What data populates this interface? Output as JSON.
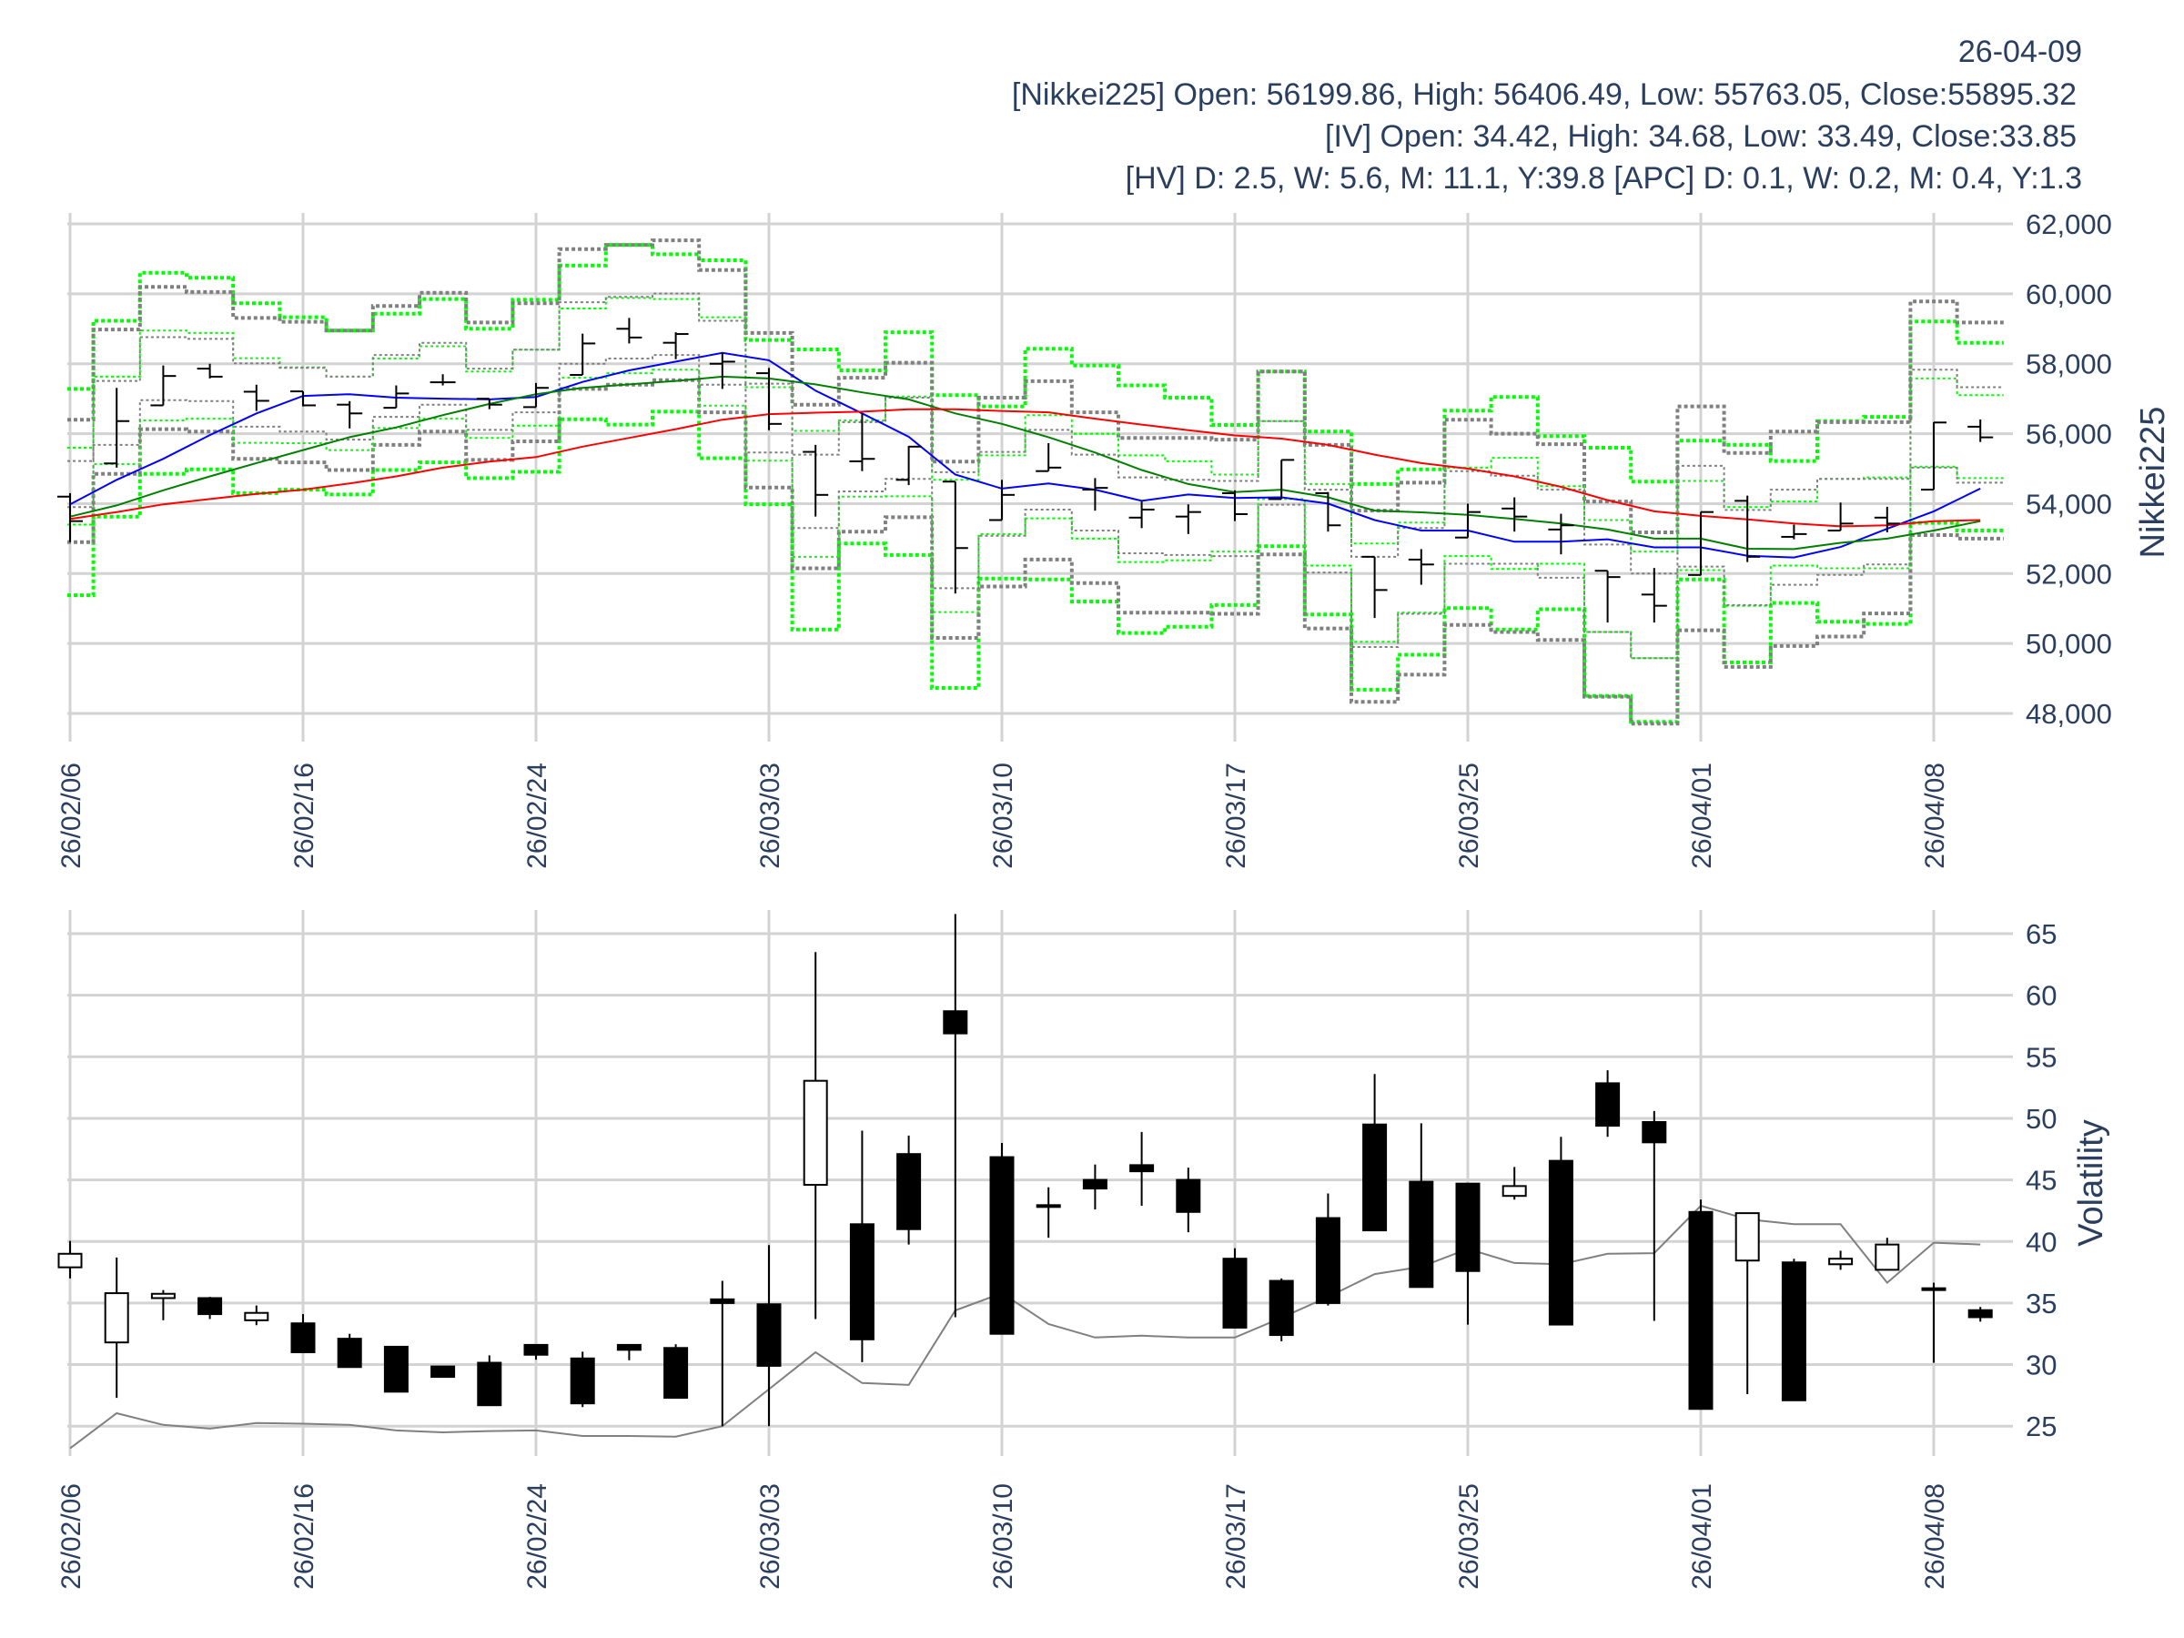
{
  "header": {
    "date": "26-04-09",
    "nikkei_line": "[Nikkei225] Open: 56199.86, High: 56406.49, Low: 55763.05, Close:55895.32",
    "iv_line": "[IV] Open: 34.42, High: 34.68, Low: 33.49, Close:33.85",
    "hv_line": "[HV] D: 2.5, W: 5.6, M: 11.1, Y:39.8 [APC] D: 0.1, W: 0.2, M: 0.4, Y:1.3"
  },
  "colors": {
    "text": "#2a3f5f",
    "grid": "#d3d3d3",
    "ma_short": "#0000ff",
    "ma_mid": "#008000",
    "ma_long": "#ff0000",
    "band_green": "#00ff00",
    "band_gray": "#808080",
    "hv": "#808080"
  },
  "chart_data": [
    {
      "type": "ohlc",
      "ylabel": "Nikkei225",
      "ylim": [
        47500,
        62300
      ],
      "yticks": [
        48000,
        50000,
        52000,
        54000,
        56000,
        58000,
        60000,
        62000
      ],
      "ytick_labels": [
        "48,000",
        "50,000",
        "52,000",
        "54,000",
        "56,000",
        "58,000",
        "60,000",
        "62,000"
      ],
      "xtick_index": [
        0,
        5,
        10,
        15,
        20,
        25,
        30,
        35,
        40
      ],
      "xtick_labels": [
        "26/02/06",
        "26/02/16",
        "26/02/24",
        "26/03/03",
        "26/03/10",
        "26/03/17",
        "26/03/25",
        "26/04/01",
        "26/04/08"
      ],
      "dates": [
        "02/06",
        "02/09",
        "02/10",
        "02/12",
        "02/13",
        "02/16",
        "02/17",
        "02/18",
        "02/19",
        "02/20",
        "02/24",
        "02/25",
        "02/26",
        "02/27",
        "03/02",
        "03/03",
        "03/04",
        "03/05",
        "03/06",
        "03/09",
        "03/10",
        "03/11",
        "03/12",
        "03/13",
        "03/16",
        "03/17",
        "03/18",
        "03/19",
        "03/23",
        "03/24",
        "03/25",
        "03/26",
        "03/27",
        "03/30",
        "03/31",
        "04/01",
        "04/02",
        "04/03",
        "04/06",
        "04/07",
        "04/08",
        "04/09"
      ],
      "open": [
        54200,
        55150,
        56810,
        57860,
        57200,
        57210,
        56830,
        56740,
        57470,
        57000,
        56760,
        57680,
        59000,
        58600,
        58000,
        57730,
        55480,
        55210,
        54680,
        54630,
        53530,
        54930,
        54400,
        53600,
        53630,
        54300,
        54130,
        54300,
        52480,
        52400,
        53030,
        53860,
        53260,
        52080,
        51400,
        51960,
        54080,
        53050,
        53230,
        53600,
        54400,
        56199.86
      ],
      "high": [
        54300,
        57310,
        57950,
        58000,
        57400,
        57210,
        56930,
        57380,
        57700,
        57000,
        57450,
        58860,
        59310,
        58900,
        58320,
        57880,
        55680,
        56580,
        55650,
        54630,
        54680,
        55730,
        54730,
        54060,
        53980,
        54380,
        55250,
        54330,
        52480,
        52700,
        54000,
        54180,
        53710,
        52080,
        52160,
        53760,
        54230,
        53400,
        54030,
        53910,
        56330,
        56406.49
      ],
      "low": [
        52900,
        55030,
        56810,
        57580,
        56650,
        56780,
        56150,
        56740,
        57380,
        56700,
        56760,
        57680,
        58580,
        58130,
        57280,
        56100,
        53630,
        54930,
        54530,
        51430,
        53530,
        54930,
        53800,
        53300,
        53130,
        53500,
        54130,
        53200,
        50730,
        51680,
        53030,
        53200,
        52550,
        50600,
        50600,
        51950,
        52330,
        52980,
        53230,
        53180,
        54400,
        55763.05
      ],
      "close": [
        53500,
        56360,
        57650,
        57630,
        56940,
        56810,
        56580,
        57150,
        57470,
        56830,
        57310,
        58580,
        58750,
        58850,
        58060,
        56280,
        54250,
        55280,
        55630,
        52730,
        54250,
        55030,
        54450,
        53830,
        53760,
        53700,
        55250,
        53380,
        51530,
        52260,
        53760,
        53630,
        53380,
        51900,
        51080,
        53760,
        52480,
        53130,
        53430,
        53430,
        56320,
        55895.32
      ],
      "lines": [
        {
          "name": "ma_short",
          "color": "#0000ff",
          "values": [
            53980,
            54680,
            55280,
            55960,
            56580,
            57080,
            57130,
            57030,
            57000,
            56980,
            57050,
            57480,
            57810,
            58060,
            58310,
            58100,
            57230,
            56580,
            55910,
            54830,
            54430,
            54580,
            54400,
            54080,
            54260,
            54160,
            54180,
            54000,
            53530,
            53230,
            53230,
            52910,
            52910,
            52980,
            52750,
            52750,
            52510,
            52460,
            52760,
            53280,
            53780,
            54430
          ]
        },
        {
          "name": "ma_mid",
          "color": "#008000",
          "values": [
            53630,
            53950,
            54380,
            54780,
            55160,
            55530,
            55900,
            56180,
            56530,
            56850,
            57130,
            57310,
            57410,
            57510,
            57630,
            57580,
            57410,
            57180,
            56980,
            56580,
            56280,
            55900,
            55460,
            54960,
            54560,
            54330,
            54400,
            54180,
            53800,
            53750,
            53680,
            53560,
            53430,
            53260,
            53000,
            53000,
            52710,
            52700,
            52880,
            53000,
            53230,
            53500
          ]
        },
        {
          "name": "ma_long",
          "color": "#ff0000",
          "values": [
            53560,
            53760,
            53980,
            54130,
            54280,
            54400,
            54580,
            54780,
            55030,
            55200,
            55330,
            55630,
            55880,
            56130,
            56400,
            56560,
            56600,
            56630,
            56700,
            56700,
            56650,
            56610,
            56430,
            56260,
            56100,
            55950,
            55860,
            55680,
            55400,
            55160,
            55000,
            54780,
            54480,
            54100,
            53780,
            53650,
            53550,
            53430,
            53350,
            53380,
            53500,
            53530
          ]
        }
      ],
      "bands": [
        {
          "name": "iv-band-outer-upper",
          "color": "#00ff00",
          "style": "thick",
          "values": [
            57280,
            59230,
            60600,
            60460,
            59730,
            59330,
            58950,
            59430,
            59850,
            59000,
            59830,
            60810,
            61400,
            61130,
            60960,
            58680,
            58410,
            57810,
            58900,
            57100,
            56780,
            58430,
            57950,
            57380,
            57030,
            56250,
            57780,
            56060,
            54560,
            54980,
            56660,
            57050,
            55930,
            55600,
            54630,
            55800,
            55680,
            55220,
            56360,
            56480,
            59210,
            58600
          ]
        },
        {
          "name": "iv-band-outer-lower",
          "color": "#00ff00",
          "style": "thick",
          "values": [
            51380,
            53630,
            54850,
            54980,
            54300,
            54400,
            54260,
            54960,
            55180,
            54730,
            54910,
            56410,
            56260,
            56630,
            55300,
            53980,
            50400,
            52860,
            52530,
            48730,
            51860,
            51830,
            51200,
            50300,
            50480,
            51100,
            52780,
            50830,
            48680,
            49680,
            51010,
            50400,
            50980,
            48500,
            47760,
            51830,
            49460,
            51160,
            50620,
            50560,
            53450,
            53230
          ]
        },
        {
          "name": "hv-band-outer-upper",
          "color": "#808080",
          "style": "thick",
          "values": [
            56400,
            58980,
            60200,
            60050,
            59310,
            59200,
            58950,
            59650,
            60030,
            59180,
            59730,
            61280,
            61400,
            61530,
            60680,
            58880,
            56830,
            57600,
            58030,
            55200,
            57030,
            57500,
            56610,
            55880,
            55880,
            55830,
            57780,
            55680,
            53800,
            54600,
            56400,
            56000,
            55700,
            54060,
            53180,
            56780,
            55450,
            56060,
            56330,
            56330,
            59780,
            59180
          ]
        },
        {
          "name": "hv-band-outer-lower",
          "color": "#808080",
          "style": "thick",
          "values": [
            52900,
            54850,
            56130,
            56060,
            55280,
            55180,
            54960,
            55680,
            56060,
            55250,
            55780,
            57280,
            57400,
            57530,
            56610,
            54460,
            52150,
            53200,
            53610,
            50160,
            51630,
            52400,
            51730,
            50880,
            50880,
            50850,
            52550,
            50430,
            48330,
            49110,
            50530,
            50330,
            50100,
            48480,
            47710,
            50380,
            49330,
            49930,
            50200,
            50860,
            53100,
            53000
          ]
        },
        {
          "name": "iv-band-inner-upper",
          "color": "#00ff00",
          "style": "thin",
          "values": [
            55600,
            57630,
            58950,
            58880,
            58160,
            57900,
            57630,
            58150,
            58500,
            57780,
            58400,
            59580,
            59880,
            59850,
            59330,
            57330,
            56080,
            56380,
            57060,
            54680,
            55380,
            56530,
            56000,
            55380,
            55210,
            54830,
            56360,
            54560,
            52860,
            53460,
            55030,
            55310,
            54500,
            53530,
            52630,
            54650,
            53900,
            54060,
            54710,
            54750,
            57580,
            57100
          ]
        },
        {
          "name": "iv-band-inner-lower",
          "color": "#00ff00",
          "style": "thin",
          "values": [
            53400,
            55130,
            56380,
            56430,
            55740,
            55730,
            55530,
            56160,
            56430,
            55880,
            56230,
            57600,
            57730,
            57830,
            56800,
            55230,
            52480,
            54200,
            54210,
            50900,
            53130,
            53580,
            53000,
            52330,
            52380,
            52630,
            54130,
            52230,
            50050,
            50880,
            52500,
            52130,
            52280,
            50330,
            49580,
            52100,
            51080,
            52230,
            52150,
            52150,
            55060,
            54730
          ]
        },
        {
          "name": "hv-band-inner-upper",
          "color": "#808080",
          "style": "thin",
          "values": [
            55220,
            57510,
            58760,
            58710,
            58010,
            57880,
            57630,
            58250,
            58600,
            57860,
            58400,
            59760,
            59910,
            60010,
            59230,
            57430,
            55400,
            56330,
            57030,
            54900,
            55480,
            56110,
            55400,
            54750,
            54680,
            54650,
            56360,
            54400,
            52480,
            53300,
            54930,
            54800,
            54400,
            52830,
            52000,
            55080,
            53820,
            54400,
            54710,
            54710,
            57830,
            57330
          ]
        },
        {
          "name": "hv-band-inner-lower",
          "color": "#808080",
          "style": "thin",
          "values": [
            53900,
            55680,
            56960,
            56930,
            56200,
            56060,
            55830,
            56480,
            56830,
            56110,
            56610,
            58000,
            58150,
            58250,
            57400,
            55460,
            53300,
            54350,
            54710,
            51580,
            53080,
            53830,
            53230,
            52580,
            52530,
            52500,
            53970,
            52030,
            49900,
            50850,
            52280,
            52280,
            51880,
            50330,
            49580,
            52200,
            51100,
            51680,
            51960,
            52260,
            55030,
            54600
          ]
        }
      ]
    },
    {
      "type": "candlestick",
      "ylabel": "Volatility",
      "ylim": [
        22,
        67
      ],
      "yticks": [
        25,
        30,
        35,
        40,
        45,
        50,
        55,
        60,
        65
      ],
      "ytick_labels": [
        "25",
        "30",
        "35",
        "40",
        "45",
        "50",
        "55",
        "60",
        "65"
      ],
      "xtick_index": [
        0,
        5,
        10,
        15,
        20,
        25,
        30,
        35,
        40
      ],
      "xtick_labels": [
        "26/02/06",
        "26/02/16",
        "26/02/24",
        "26/03/03",
        "26/03/10",
        "26/03/17",
        "26/03/25",
        "26/04/01",
        "26/04/08"
      ],
      "open": [
        37.9,
        31.8,
        35.4,
        35.4,
        33.6,
        33.35,
        32.1,
        31.45,
        29.85,
        30.15,
        31.6,
        30.5,
        31.6,
        31.35,
        35.3,
        34.9,
        44.6,
        41.4,
        47.1,
        58.7,
        46.85,
        42.95,
        45.0,
        46.2,
        45.0,
        38.6,
        36.8,
        41.9,
        49.5,
        44.85,
        44.7,
        43.7,
        46.55,
        52.85,
        49.7,
        42.4,
        38.45,
        38.3,
        38.15,
        37.7,
        36.2,
        34.42
      ],
      "high": [
        40.05,
        38.7,
        36.05,
        35.5,
        34.8,
        34.1,
        32.5,
        31.45,
        29.85,
        30.75,
        31.6,
        31.05,
        31.65,
        31.65,
        36.8,
        39.7,
        63.5,
        49.0,
        48.6,
        66.6,
        48.0,
        44.4,
        46.25,
        48.9,
        46.0,
        39.45,
        37.0,
        43.9,
        53.6,
        49.6,
        44.7,
        46.05,
        48.5,
        53.9,
        50.6,
        43.4,
        42.35,
        38.6,
        39.25,
        40.3,
        36.65,
        34.68
      ],
      "low": [
        37.0,
        27.3,
        33.6,
        33.7,
        33.2,
        31.0,
        29.8,
        27.8,
        29.0,
        26.7,
        30.4,
        26.55,
        30.35,
        27.3,
        25.0,
        25.0,
        33.7,
        30.2,
        39.75,
        33.85,
        32.5,
        40.3,
        42.6,
        42.9,
        40.75,
        33.0,
        31.9,
        34.8,
        40.9,
        36.3,
        33.25,
        43.4,
        33.25,
        48.5,
        33.55,
        26.4,
        27.6,
        27.1,
        37.7,
        37.7,
        30.15,
        33.49
      ],
      "close": [
        39.0,
        35.8,
        35.75,
        34.1,
        34.2,
        31.0,
        29.8,
        27.8,
        29.0,
        26.7,
        30.8,
        26.85,
        31.2,
        27.3,
        35.0,
        29.9,
        53.05,
        32.05,
        41.0,
        56.9,
        32.5,
        42.85,
        44.3,
        45.7,
        42.4,
        33.0,
        32.4,
        35.0,
        40.9,
        36.3,
        37.6,
        44.5,
        33.25,
        49.4,
        48.05,
        26.4,
        42.3,
        27.1,
        38.6,
        39.75,
        36.1,
        33.85
      ],
      "hv": [
        23.2,
        26.05,
        25.1,
        24.8,
        25.25,
        25.2,
        25.1,
        24.65,
        24.5,
        24.6,
        24.65,
        24.2,
        24.2,
        24.15,
        25.0,
        28.0,
        31.0,
        28.5,
        28.35,
        34.4,
        35.8,
        33.3,
        32.2,
        32.35,
        32.2,
        32.2,
        33.8,
        35.5,
        37.35,
        37.95,
        39.4,
        38.25,
        38.15,
        39.0,
        39.05,
        42.9,
        41.8,
        41.4,
        41.4,
        36.65,
        39.9,
        39.75
      ]
    }
  ]
}
